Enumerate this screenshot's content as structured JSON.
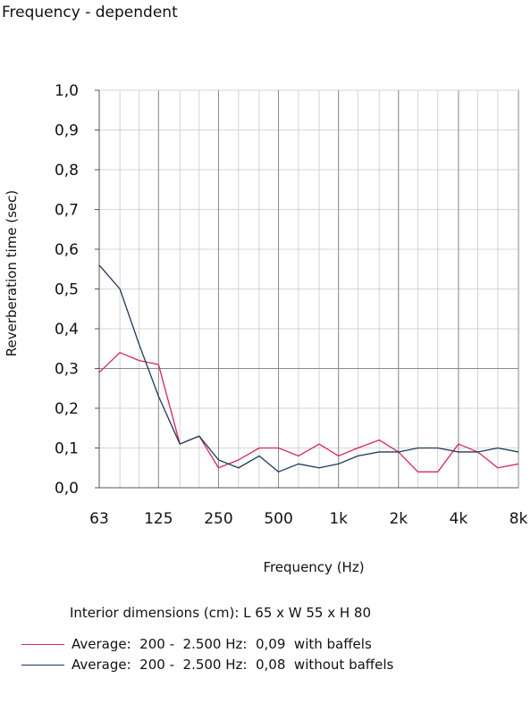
{
  "title": "Frequency - dependent",
  "note": "Interior dimensions (cm): L 65 x W 55 x H 80",
  "legend": [
    {
      "label": "Average:  200 -  2.500 Hz:  0,09  with baffels",
      "color": "#d6265f"
    },
    {
      "label": "Average:  200 -  2.500 Hz:  0,08  without baffels",
      "color": "#1c3a5c"
    }
  ],
  "chart_data": {
    "type": "line",
    "xlabel": "Frequency (Hz)",
    "ylabel": "Reverberation time (sec)",
    "ylim": [
      0,
      1.0
    ],
    "x_scale": "log",
    "grid": true,
    "legend_position": "bottom",
    "x_tick_labels": [
      "63",
      "125",
      "250",
      "500",
      "1k",
      "2k",
      "4k",
      "8k"
    ],
    "y_tick_labels": [
      "0,0",
      "0,1",
      "0,2",
      "0,3",
      "0,4",
      "0,5",
      "0,6",
      "0,7",
      "0,8",
      "0,9",
      "1,0"
    ],
    "x": [
      63,
      80,
      100,
      125,
      160,
      200,
      250,
      315,
      400,
      500,
      630,
      800,
      1000,
      1250,
      1600,
      2000,
      2500,
      3150,
      4000,
      5000,
      6300,
      8000
    ],
    "series": [
      {
        "name": "Average:  200 -  2.500 Hz:  0,09  with baffels",
        "color": "#d6265f",
        "values": [
          0.29,
          0.34,
          0.32,
          0.31,
          0.11,
          0.13,
          0.05,
          0.07,
          0.1,
          0.1,
          0.08,
          0.11,
          0.08,
          0.1,
          0.12,
          0.09,
          0.04,
          0.04,
          0.11,
          0.09,
          0.05,
          0.06
        ]
      },
      {
        "name": "Average:  200 -  2.500 Hz:  0,08  without baffels",
        "color": "#1c3a5c",
        "values": [
          0.56,
          0.5,
          0.36,
          0.23,
          0.11,
          0.13,
          0.07,
          0.05,
          0.08,
          0.04,
          0.06,
          0.05,
          0.06,
          0.08,
          0.09,
          0.09,
          0.1,
          0.1,
          0.09,
          0.09,
          0.1,
          0.09
        ]
      }
    ]
  }
}
